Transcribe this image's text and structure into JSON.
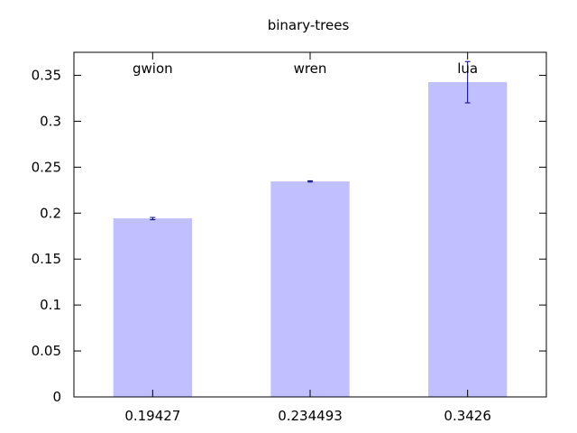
{
  "chart_data": {
    "type": "bar",
    "title": "binary-trees",
    "xlabel": "",
    "ylabel": "",
    "ylim": [
      0,
      0.375
    ],
    "yticks": [
      0,
      0.05,
      0.1,
      0.15,
      0.2,
      0.25,
      0.3,
      0.35
    ],
    "ytick_labels": [
      "0",
      "0.05",
      "0.1",
      "0.15",
      "0.2",
      "0.25",
      "0.3",
      "0.35"
    ],
    "grid": false,
    "bar_color": "#c0c0ff",
    "error_color": "#00008b",
    "categories": [
      "0.19427",
      "0.234493",
      "0.3426"
    ],
    "labels": [
      "gwion",
      "wren",
      "lua"
    ],
    "values": [
      0.19427,
      0.234493,
      0.3426
    ],
    "errors": [
      {
        "low": 0.1928,
        "high": 0.1953
      },
      {
        "low": 0.2338,
        "high": 0.2352
      },
      {
        "low": 0.32,
        "high": 0.365
      }
    ]
  }
}
